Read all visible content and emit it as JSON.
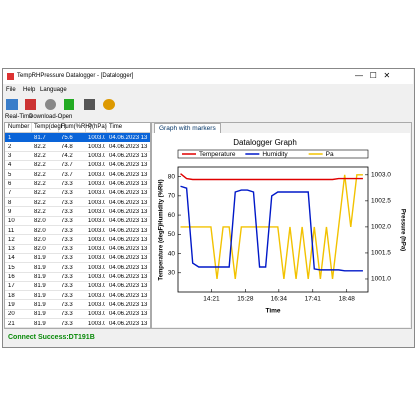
{
  "window": {
    "title": "TempRHPressure Datalogger - [Datalogger]",
    "menu": [
      "File",
      "Help",
      "Language"
    ]
  },
  "left_tabs": [
    "Real-Time",
    "Download-Open"
  ],
  "table": {
    "columns": [
      "Number",
      "Temp(degF)",
      "Hum(%RH)",
      "P(hPa)",
      "Time"
    ],
    "rows": [
      [
        "1",
        "81.7",
        "75.6",
        "1003.0",
        "04.06.2023 13"
      ],
      [
        "2",
        "82.2",
        "74.8",
        "1003.0",
        "04.06.2023 13"
      ],
      [
        "3",
        "82.2",
        "74.2",
        "1003.0",
        "04.06.2023 13"
      ],
      [
        "4",
        "82.2",
        "73.7",
        "1003.0",
        "04.06.2023 13"
      ],
      [
        "5",
        "82.2",
        "73.7",
        "1003.0",
        "04.06.2023 13"
      ],
      [
        "6",
        "82.2",
        "73.3",
        "1003.0",
        "04.06.2023 13"
      ],
      [
        "7",
        "82.2",
        "73.3",
        "1003.0",
        "04.06.2023 13"
      ],
      [
        "8",
        "82.2",
        "73.3",
        "1003.0",
        "04.06.2023 13"
      ],
      [
        "9",
        "82.2",
        "73.3",
        "1003.0",
        "04.06.2023 13"
      ],
      [
        "10",
        "82.0",
        "73.3",
        "1003.0",
        "04.06.2023 13"
      ],
      [
        "11",
        "82.0",
        "73.3",
        "1003.0",
        "04.06.2023 13"
      ],
      [
        "12",
        "82.0",
        "73.3",
        "1003.0",
        "04.06.2023 13"
      ],
      [
        "13",
        "82.0",
        "73.3",
        "1003.0",
        "04.06.2023 13"
      ],
      [
        "14",
        "81.9",
        "73.3",
        "1003.0",
        "04.06.2023 13"
      ],
      [
        "15",
        "81.9",
        "73.3",
        "1003.0",
        "04.06.2023 13"
      ],
      [
        "16",
        "81.9",
        "73.3",
        "1003.0",
        "04.06.2023 13"
      ],
      [
        "17",
        "81.9",
        "73.3",
        "1003.0",
        "04.06.2023 13"
      ],
      [
        "18",
        "81.9",
        "73.3",
        "1003.0",
        "04.06.2023 13"
      ],
      [
        "19",
        "81.9",
        "73.3",
        "1003.0",
        "04.06.2023 13"
      ],
      [
        "20",
        "81.9",
        "73.3",
        "1003.0",
        "04.06.2023 13"
      ],
      [
        "21",
        "81.9",
        "73.3",
        "1003.0",
        "04.06.2023 13"
      ]
    ]
  },
  "graph_tab": "Graph with markers",
  "status": "Connect Success:DT191B",
  "chart_data": {
    "type": "line",
    "title": "Datalogger Graph",
    "x_label": "Time",
    "y_label": "Temperature (degF)Humidity (%RH)",
    "y2_label": "Pressure (hPa)",
    "x": [
      800,
      812,
      824,
      836,
      848,
      860,
      872,
      884,
      896,
      908,
      920,
      932,
      944,
      956,
      968,
      980,
      992,
      1004,
      1016,
      1028,
      1040,
      1052,
      1064,
      1076,
      1088,
      1100,
      1112,
      1124,
      1136,
      1148,
      1160
    ],
    "xlim": [
      795,
      1170
    ],
    "xticks": [
      {
        "value": 861,
        "label": "14:21"
      },
      {
        "value": 928,
        "label": "15:28"
      },
      {
        "value": 994,
        "label": "16:34"
      },
      {
        "value": 1061,
        "label": "17:41"
      },
      {
        "value": 1128,
        "label": "18:48"
      }
    ],
    "ylim": [
      20,
      85
    ],
    "yticks": [
      30,
      40,
      50,
      60,
      70,
      80
    ],
    "y2lim": [
      1000.75,
      1003.15
    ],
    "y2ticks": [
      {
        "value": 1001,
        "label": "1001.0"
      },
      {
        "value": 1001.5,
        "label": "1001.5"
      },
      {
        "value": 1002,
        "label": "1002.0"
      },
      {
        "value": 1002.5,
        "label": "1002.5"
      },
      {
        "value": 1003,
        "label": "1003.0"
      }
    ],
    "series": [
      {
        "name": "Temperature",
        "color": "#e00000",
        "values": [
          81.5,
          79,
          78.5,
          78.5,
          78.5,
          78.5,
          78.5,
          78.5,
          78.5,
          78.5,
          78.5,
          78.5,
          78.5,
          78.5,
          78.5,
          78.5,
          78.5,
          78.5,
          78.5,
          78.5,
          78.5,
          78.5,
          78.5,
          78.5,
          78.5,
          78.5,
          79,
          79,
          79,
          79,
          79
        ]
      },
      {
        "name": "Humidity",
        "color": "#0018c8",
        "values": [
          75,
          74,
          35,
          33,
          33,
          33,
          33,
          33,
          33,
          72,
          73,
          73,
          72,
          33,
          33,
          70,
          72,
          72,
          72,
          72,
          72,
          72,
          32,
          31.5,
          31.5,
          31.5,
          31.5,
          31,
          31,
          31,
          31
        ]
      },
      {
        "name": "Pa",
        "color": "#f2c200",
        "axis": "y2",
        "values": [
          1002,
          1002,
          1002,
          1002,
          1002,
          1002,
          1001,
          1002,
          1002,
          1001,
          1002,
          1002,
          1002,
          1002,
          1002,
          1002,
          1002,
          1001,
          1002,
          1001,
          1002,
          1001,
          1002,
          1001,
          1002,
          1001,
          1002,
          1003,
          1002,
          1003,
          1003
        ]
      }
    ]
  }
}
